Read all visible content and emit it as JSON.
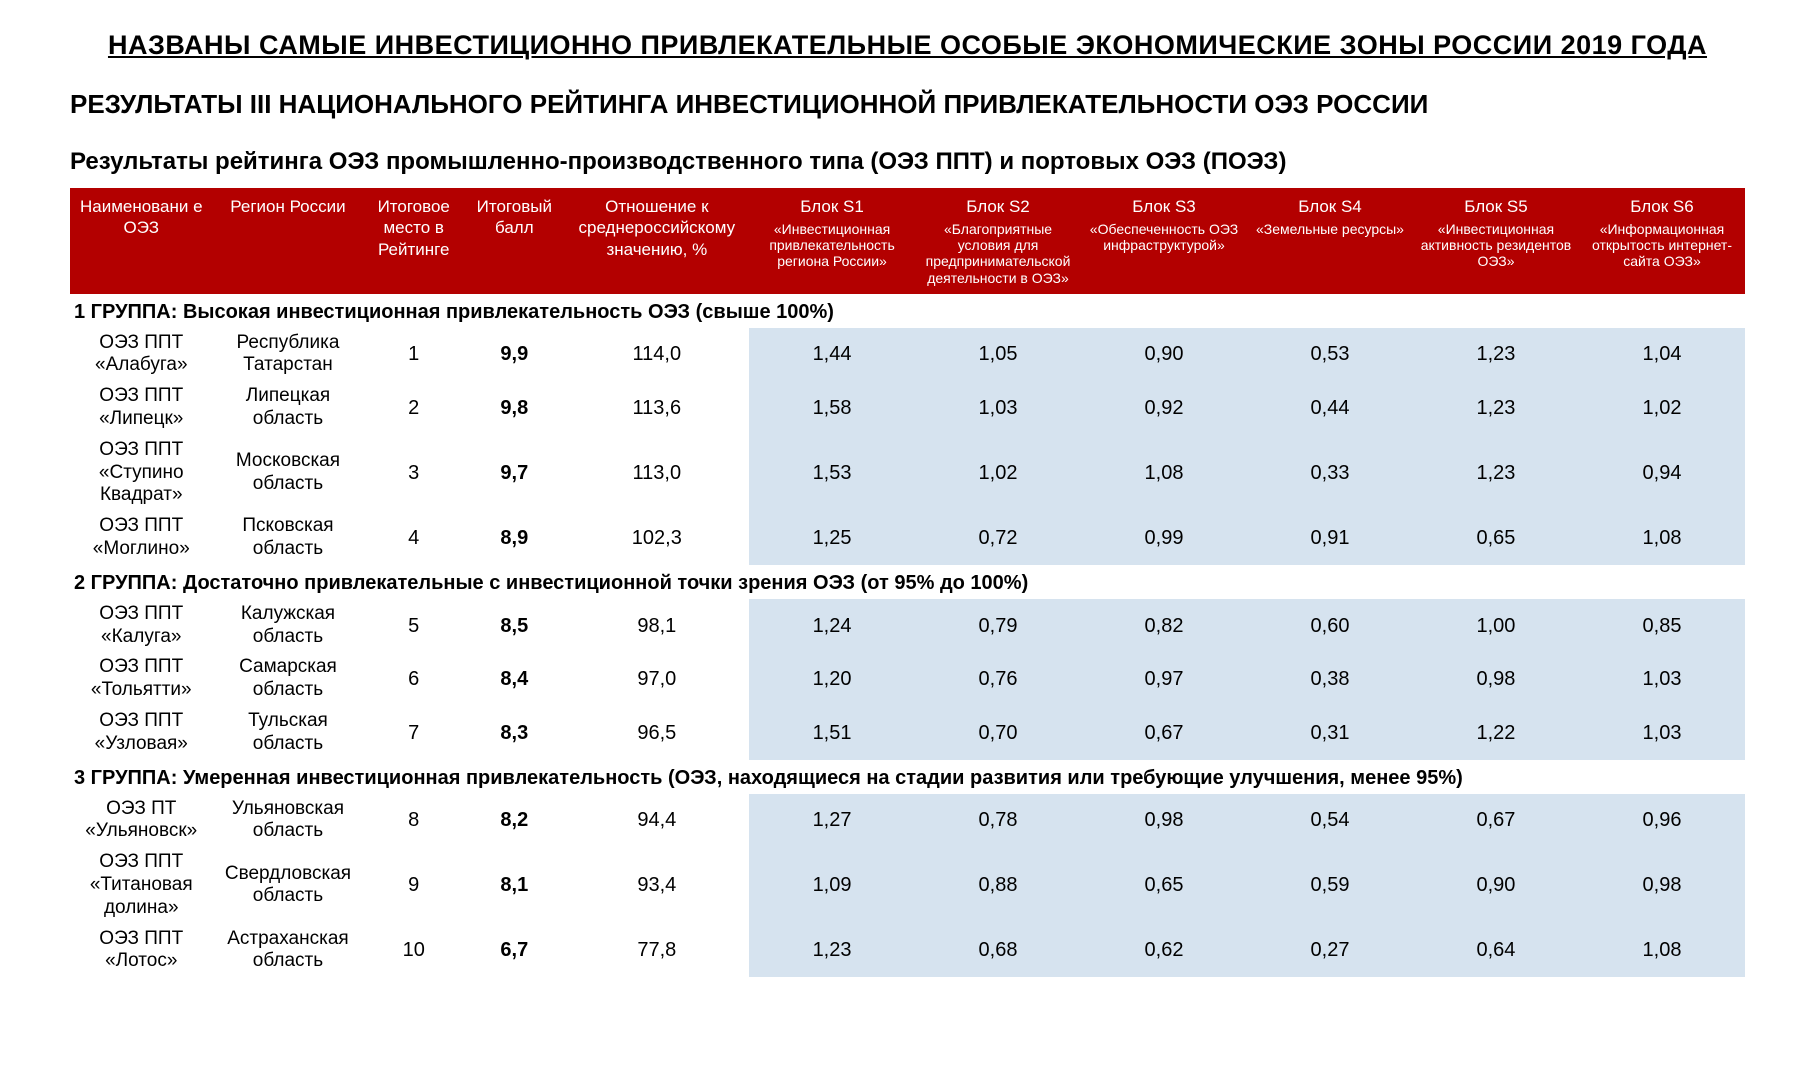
{
  "title": "НАЗВАНЫ САМЫЕ ИНВЕСТИЦИОННО ПРИВЛЕКАТЕЛЬНЫЕ ОСОБЫЕ ЭКОНОМИЧЕСКИЕ ЗОНЫ РОССИИ 2019 ГОДА",
  "subtitle": "РЕЗУЛЬТАТЫ III НАЦИОНАЛЬНОГО РЕЙТИНГА ИНВЕСТИЦИОННОЙ ПРИВЛЕКАТЕЛЬНОСТИ ОЭЗ РОССИИ",
  "section_heading": "Результаты рейтинга ОЭЗ промышленно-производственного типа (ОЭЗ ППТ) и портовых ОЭЗ (ПОЭЗ)",
  "colors": {
    "header_bg": "#b30000",
    "header_fg": "#ffffff",
    "shaded_bg": "#d6e3ef",
    "page_bg": "#ffffff",
    "text": "#000000"
  },
  "columns": [
    {
      "main": "Наименовани е ОЭЗ",
      "sub": ""
    },
    {
      "main": "Регион России",
      "sub": ""
    },
    {
      "main": "Итоговое место в Рейтинге",
      "sub": ""
    },
    {
      "main": "Итоговый балл",
      "sub": ""
    },
    {
      "main": "Отношение к среднероссийскому значению, %",
      "sub": ""
    },
    {
      "main": "Блок S1",
      "sub": "«Инвестиционная привлекательность региона России»"
    },
    {
      "main": "Блок S2",
      "sub": "«Благоприятные условия для предпринимательской деятельности в ОЭЗ»"
    },
    {
      "main": "Блок S3",
      "sub": "«Обеспеченность ОЭЗ инфраструктурой»"
    },
    {
      "main": "Блок S4",
      "sub": "«Земельные ресурсы»"
    },
    {
      "main": "Блок S5",
      "sub": "«Инвестиционная активность резидентов ОЭЗ»"
    },
    {
      "main": "Блок S6",
      "sub": "«Информационная открытость интернет-сайта ОЭЗ»"
    }
  ],
  "groups": [
    {
      "label": "1 ГРУППА:",
      "desc": "Высокая инвестиционная привлекательность ОЭЗ (свыше 100%)",
      "rows": [
        {
          "name": "ОЭЗ ППТ «Алабуга»",
          "region": "Республика Татарстан",
          "rank": "1",
          "score": "9,9",
          "ratio": "114,0",
          "s1": "1,44",
          "s2": "1,05",
          "s3": "0,90",
          "s4": "0,53",
          "s5": "1,23",
          "s6": "1,04"
        },
        {
          "name": "ОЭЗ ППТ «Липецк»",
          "region": "Липецкая область",
          "rank": "2",
          "score": "9,8",
          "ratio": "113,6",
          "s1": "1,58",
          "s2": "1,03",
          "s3": "0,92",
          "s4": "0,44",
          "s5": "1,23",
          "s6": "1,02"
        },
        {
          "name": "ОЭЗ ППТ «Ступино Квадрат»",
          "region": "Московская область",
          "rank": "3",
          "score": "9,7",
          "ratio": "113,0",
          "s1": "1,53",
          "s2": "1,02",
          "s3": "1,08",
          "s4": "0,33",
          "s5": "1,23",
          "s6": "0,94"
        },
        {
          "name": "ОЭЗ ППТ «Моглино»",
          "region": "Псковская область",
          "rank": "4",
          "score": "8,9",
          "ratio": "102,3",
          "s1": "1,25",
          "s2": "0,72",
          "s3": "0,99",
          "s4": "0,91",
          "s5": "0,65",
          "s6": "1,08"
        }
      ]
    },
    {
      "label": "2 ГРУППА:",
      "desc": "Достаточно привлекательные с инвестиционной точки зрения ОЭЗ (от 95% до 100%)",
      "rows": [
        {
          "name": "ОЭЗ ППТ «Калуга»",
          "region": "Калужская область",
          "rank": "5",
          "score": "8,5",
          "ratio": "98,1",
          "s1": "1,24",
          "s2": "0,79",
          "s3": "0,82",
          "s4": "0,60",
          "s5": "1,00",
          "s6": "0,85"
        },
        {
          "name": "ОЭЗ ППТ «Тольятти»",
          "region": "Самарская область",
          "rank": "6",
          "score": "8,4",
          "ratio": "97,0",
          "s1": "1,20",
          "s2": "0,76",
          "s3": "0,97",
          "s4": "0,38",
          "s5": "0,98",
          "s6": "1,03"
        },
        {
          "name": "ОЭЗ ППТ «Узловая»",
          "region": "Тульская область",
          "rank": "7",
          "score": "8,3",
          "ratio": "96,5",
          "s1": "1,51",
          "s2": "0,70",
          "s3": "0,67",
          "s4": "0,31",
          "s5": "1,22",
          "s6": "1,03"
        }
      ]
    },
    {
      "label": "3 ГРУППА:",
      "desc": "Умеренная инвестиционная привлекательность (ОЭЗ, находящиеся на стадии развития или требующие улучшения, менее 95%)",
      "rows": [
        {
          "name": "ОЭЗ ПТ «Ульяновск»",
          "region": "Ульяновская область",
          "rank": "8",
          "score": "8,2",
          "ratio": "94,4",
          "s1": "1,27",
          "s2": "0,78",
          "s3": "0,98",
          "s4": "0,54",
          "s5": "0,67",
          "s6": "0,96"
        },
        {
          "name": "ОЭЗ ППТ «Титановая долина»",
          "region": "Свердловская область",
          "rank": "9",
          "score": "8,1",
          "ratio": "93,4",
          "s1": "1,09",
          "s2": "0,88",
          "s3": "0,65",
          "s4": "0,59",
          "s5": "0,90",
          "s6": "0,98"
        },
        {
          "name": "ОЭЗ ППТ «Лотос»",
          "region": "Астраханская область",
          "rank": "10",
          "score": "6,7",
          "ratio": "77,8",
          "s1": "1,23",
          "s2": "0,68",
          "s3": "0,62",
          "s4": "0,27",
          "s5": "0,64",
          "s6": "1,08"
        }
      ]
    }
  ]
}
